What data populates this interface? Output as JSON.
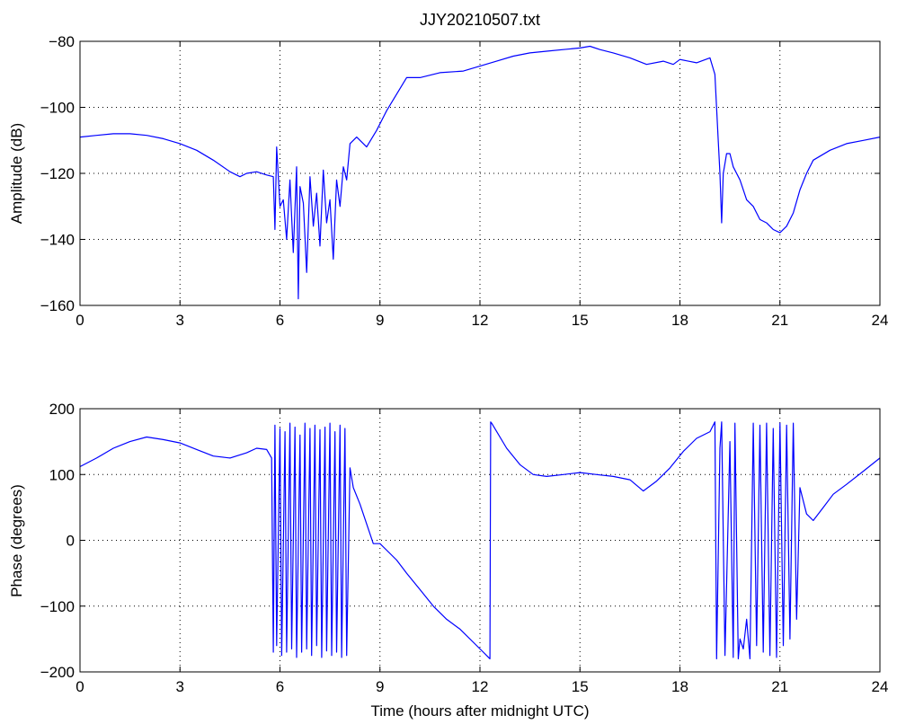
{
  "chart_data": [
    {
      "type": "line",
      "title": "JJY20210507.txt",
      "xlabel": "",
      "ylabel": "Amplitude (dB)",
      "xlim": [
        0,
        24
      ],
      "ylim": [
        -160,
        -80
      ],
      "xticks": [
        0,
        3,
        6,
        9,
        12,
        15,
        18,
        21,
        24
      ],
      "yticks": [
        -160,
        -140,
        -120,
        -100,
        -80
      ],
      "grid": true,
      "color": "#0000ff",
      "series": [
        {
          "x": [
            0,
            0.5,
            1,
            1.5,
            2,
            2.5,
            3,
            3.5,
            4,
            4.5,
            4.8,
            5,
            5.3,
            5.6,
            5.8,
            5.85,
            5.9,
            6.0,
            6.1,
            6.2,
            6.3,
            6.4,
            6.5,
            6.55,
            6.6,
            6.7,
            6.8,
            6.9,
            7.0,
            7.1,
            7.2,
            7.3,
            7.4,
            7.5,
            7.6,
            7.7,
            7.8,
            7.9,
            8.0,
            8.1,
            8.3,
            8.6,
            8.9,
            9.2,
            9.5,
            9.8,
            10.2,
            10.8,
            11.5,
            12,
            12.5,
            13,
            13.5,
            14,
            14.5,
            15,
            15.3,
            15.6,
            16,
            16.5,
            17,
            17.5,
            17.8,
            18,
            18.5,
            18.9,
            19.05,
            19.15,
            19.2,
            19.25,
            19.3,
            19.35,
            19.4,
            19.5,
            19.6,
            19.8,
            20,
            20.2,
            20.4,
            20.6,
            20.8,
            21,
            21.2,
            21.4,
            21.6,
            21.8,
            22,
            22.5,
            23,
            23.5,
            24
          ],
          "y": [
            -109,
            -108.5,
            -108,
            -108,
            -108.5,
            -109.5,
            -111,
            -113,
            -116,
            -119.5,
            -121,
            -120,
            -119.5,
            -120.5,
            -121,
            -137,
            -112,
            -130,
            -128,
            -140,
            -122,
            -144,
            -118,
            -158,
            -124,
            -129,
            -150,
            -121,
            -136,
            -126,
            -142,
            -119,
            -135,
            -128,
            -146,
            -122,
            -130,
            -118,
            -122,
            -111,
            -109,
            -112,
            -107,
            -101,
            -96,
            -91,
            -91,
            -89.5,
            -89,
            -87.5,
            -86,
            -84.5,
            -83.5,
            -83,
            -82.5,
            -82,
            -81.5,
            -82.5,
            -83.5,
            -85,
            -87,
            -86,
            -87,
            -85.5,
            -86.5,
            -85,
            -90,
            -110,
            -120,
            -135,
            -120,
            -117,
            -114,
            -114,
            -118,
            -122,
            -128,
            -130,
            -134,
            -135,
            -137,
            -138,
            -136,
            -132,
            -125,
            -120,
            -116,
            -113,
            -111,
            -110,
            -109
          ]
        }
      ]
    },
    {
      "type": "line",
      "title": "",
      "xlabel": "Time (hours after midnight UTC)",
      "ylabel": "Phase (degrees)",
      "xlim": [
        0,
        24
      ],
      "ylim": [
        -200,
        200
      ],
      "xticks": [
        0,
        3,
        6,
        9,
        12,
        15,
        18,
        21,
        24
      ],
      "yticks": [
        -200,
        -100,
        0,
        100,
        200
      ],
      "grid": true,
      "color": "#0000ff",
      "series": [
        {
          "x": [
            0,
            0.5,
            1,
            1.5,
            2,
            2.5,
            3,
            3.5,
            4,
            4.5,
            5,
            5.3,
            5.6,
            5.75,
            5.8,
            5.85,
            5.9,
            6.0,
            6.05,
            6.15,
            6.2,
            6.3,
            6.35,
            6.45,
            6.5,
            6.6,
            6.65,
            6.75,
            6.8,
            6.9,
            6.95,
            7.05,
            7.1,
            7.2,
            7.25,
            7.35,
            7.4,
            7.5,
            7.55,
            7.65,
            7.7,
            7.8,
            7.85,
            7.95,
            8.0,
            8.1,
            8.2,
            8.4,
            8.6,
            8.8,
            9.0,
            9.2,
            9.5,
            9.8,
            10.2,
            10.6,
            11.0,
            11.4,
            11.8,
            12.1,
            12.3,
            12.32,
            12.35,
            12.8,
            13.2,
            13.6,
            14,
            14.5,
            15,
            15.5,
            16,
            16.5,
            16.9,
            17.3,
            17.7,
            18.1,
            18.5,
            18.9,
            19.05,
            19.1,
            19.2,
            19.25,
            19.35,
            19.5,
            19.6,
            19.65,
            19.75,
            19.8,
            19.9,
            20.0,
            20.1,
            20.2,
            20.3,
            20.4,
            20.5,
            20.6,
            20.7,
            20.8,
            20.9,
            21.0,
            21.1,
            21.2,
            21.3,
            21.4,
            21.5,
            21.6,
            21.7,
            21.8,
            22.0,
            22.3,
            22.6,
            23,
            23.5,
            24
          ],
          "y": [
            112,
            125,
            140,
            150,
            157,
            153,
            148,
            138,
            128,
            125,
            133,
            140,
            138,
            125,
            -170,
            175,
            -160,
            170,
            -175,
            165,
            -170,
            178,
            -165,
            172,
            -178,
            160,
            -170,
            178,
            -165,
            170,
            -175,
            175,
            -160,
            168,
            -178,
            172,
            -168,
            178,
            -175,
            165,
            -170,
            175,
            -178,
            170,
            -175,
            110,
            80,
            55,
            25,
            -5,
            -5,
            -15,
            -30,
            -50,
            -75,
            -100,
            -120,
            -135,
            -155,
            -170,
            -180,
            180,
            178,
            140,
            115,
            100,
            97,
            100,
            103,
            100,
            97,
            92,
            75,
            90,
            110,
            135,
            155,
            165,
            180,
            -180,
            140,
            180,
            -175,
            150,
            -178,
            178,
            -180,
            -150,
            -165,
            -120,
            -180,
            178,
            -160,
            175,
            -170,
            178,
            -175,
            170,
            -178,
            178,
            -160,
            175,
            -150,
            178,
            -120,
            80,
            60,
            40,
            30,
            50,
            70,
            85,
            105,
            125
          ]
        }
      ]
    }
  ]
}
